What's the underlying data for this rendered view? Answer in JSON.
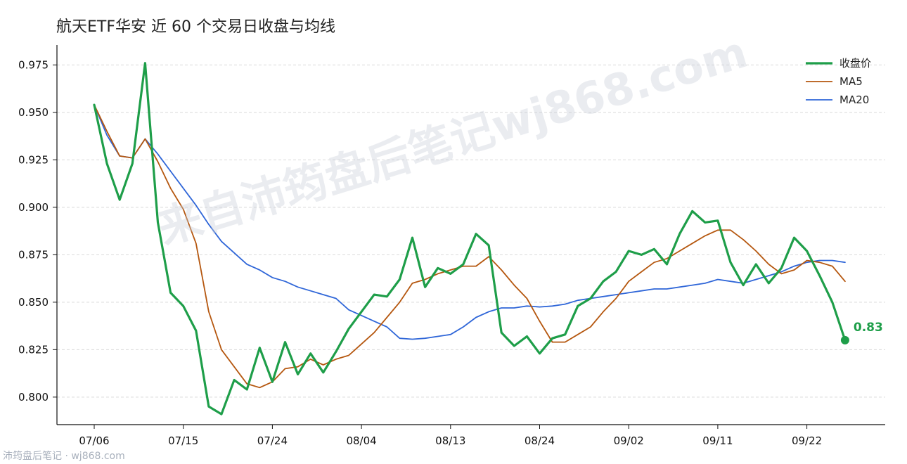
{
  "title": "航天ETF华安 近 60 个交易日收盘与均线",
  "watermark": "来自沛筠盘后笔记wj868.com",
  "footer": "沛筠盘后笔记 · wj868.com",
  "colors": {
    "close": "#1e9e49",
    "ma5": "#b5570f",
    "ma20": "#2f66d8"
  },
  "chart_data": {
    "type": "line",
    "title": "航天ETF华安 近 60 个交易日收盘与均线",
    "xlabel": "",
    "ylabel": "",
    "ylim": [
      0.7855,
      0.9855
    ],
    "yticks": [
      0.8,
      0.825,
      0.85,
      0.875,
      0.9,
      0.925,
      0.95,
      0.975
    ],
    "ytick_labels": [
      "0.800",
      "0.825",
      "0.850",
      "0.875",
      "0.900",
      "0.925",
      "0.950",
      "0.975"
    ],
    "xtick_labels": [
      {
        "index": 0,
        "label": "07/06"
      },
      {
        "index": 7,
        "label": "07/15"
      },
      {
        "index": 14,
        "label": "07/24"
      },
      {
        "index": 21,
        "label": "08/04"
      },
      {
        "index": 28,
        "label": "08/13"
      },
      {
        "index": 35,
        "label": "08/24"
      },
      {
        "index": 42,
        "label": "09/02"
      },
      {
        "index": 49,
        "label": "09/11"
      },
      {
        "index": 56,
        "label": "09/22"
      }
    ],
    "grid": "horizontal",
    "legend": "top-right",
    "last_label": "0.83",
    "series": [
      {
        "name": "收盘价",
        "values": [
          0.954,
          0.923,
          0.904,
          0.923,
          0.976,
          0.892,
          0.855,
          0.848,
          0.835,
          0.795,
          0.791,
          0.809,
          0.804,
          0.826,
          0.808,
          0.829,
          0.812,
          0.823,
          0.813,
          0.824,
          0.836,
          0.845,
          0.854,
          0.853,
          0.862,
          0.884,
          0.858,
          0.868,
          0.865,
          0.87,
          0.886,
          0.88,
          0.834,
          0.827,
          0.832,
          0.823,
          0.831,
          0.833,
          0.848,
          0.852,
          0.861,
          0.866,
          0.877,
          0.875,
          0.878,
          0.87,
          0.886,
          0.898,
          0.892,
          0.893,
          0.871,
          0.859,
          0.87,
          0.86,
          0.868,
          0.884,
          0.877,
          0.864,
          0.85,
          0.83
        ]
      },
      {
        "name": "MA5",
        "values": [
          0.954,
          0.94,
          0.927,
          0.926,
          0.936,
          0.924,
          0.91,
          0.899,
          0.881,
          0.845,
          0.825,
          0.816,
          0.807,
          0.805,
          0.808,
          0.815,
          0.816,
          0.82,
          0.817,
          0.82,
          0.822,
          0.828,
          0.834,
          0.842,
          0.85,
          0.86,
          0.862,
          0.865,
          0.867,
          0.869,
          0.869,
          0.874,
          0.867,
          0.859,
          0.852,
          0.84,
          0.829,
          0.829,
          0.833,
          0.837,
          0.845,
          0.852,
          0.861,
          0.866,
          0.871,
          0.873,
          0.877,
          0.881,
          0.885,
          0.888,
          0.888,
          0.883,
          0.877,
          0.87,
          0.865,
          0.867,
          0.872,
          0.871,
          0.869,
          0.861
        ]
      },
      {
        "name": "MA20",
        "values": [
          0.954,
          0.938,
          0.927,
          0.926,
          0.936,
          0.928,
          0.919,
          0.91,
          0.901,
          0.891,
          0.882,
          0.876,
          0.87,
          0.867,
          0.863,
          0.861,
          0.858,
          0.856,
          0.854,
          0.852,
          0.846,
          0.843,
          0.84,
          0.837,
          0.831,
          0.8305,
          0.831,
          0.832,
          0.833,
          0.837,
          0.842,
          0.845,
          0.847,
          0.847,
          0.848,
          0.8475,
          0.848,
          0.849,
          0.851,
          0.852,
          0.853,
          0.854,
          0.855,
          0.856,
          0.857,
          0.857,
          0.858,
          0.859,
          0.86,
          0.862,
          0.861,
          0.86,
          0.862,
          0.864,
          0.866,
          0.869,
          0.871,
          0.872,
          0.872,
          0.871
        ]
      }
    ]
  }
}
